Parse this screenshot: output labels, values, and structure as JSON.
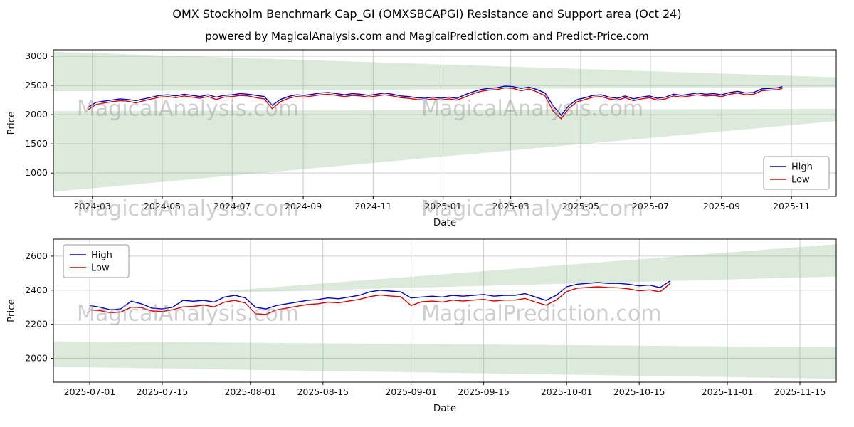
{
  "header": {
    "title": "OMX Stockholm Benchmark Cap_GI (OMXSBCAPGI) Resistance and Support area (Oct 24)",
    "subtitle": "powered by MagicalAnalysis.com and MagicalPrediction.com and Predict-Price.com"
  },
  "colors": {
    "high": "#0000cc",
    "low": "#dd0000",
    "band": "#8fbf8f",
    "grid": "#cccccc",
    "watermark": "#9e9e9e",
    "spine": "#000000",
    "text": "#111111"
  },
  "chart_data": [
    {
      "type": "line",
      "xlabel": "Date",
      "ylabel": "Price",
      "grid": true,
      "xlim": [
        "2024-01-27",
        "2025-12-10"
      ],
      "ylim": [
        600,
        3110
      ],
      "xticks": [
        "2024-03",
        "2024-05",
        "2024-07",
        "2024-09",
        "2024-11",
        "2025-01",
        "2025-03",
        "2025-05",
        "2025-07",
        "2025-09",
        "2025-11"
      ],
      "yticks": [
        1000,
        1500,
        2000,
        2500,
        3000
      ],
      "legend": {
        "position": "lower right",
        "entries": [
          "High",
          "Low"
        ]
      },
      "x": [
        "2024-02-26",
        "2024-03-04",
        "2024-03-11",
        "2024-03-18",
        "2024-03-25",
        "2024-04-01",
        "2024-04-08",
        "2024-04-15",
        "2024-04-22",
        "2024-04-29",
        "2024-05-06",
        "2024-05-13",
        "2024-05-20",
        "2024-05-27",
        "2024-06-03",
        "2024-06-10",
        "2024-06-17",
        "2024-06-24",
        "2024-07-01",
        "2024-07-08",
        "2024-07-15",
        "2024-07-22",
        "2024-07-29",
        "2024-08-05",
        "2024-08-12",
        "2024-08-19",
        "2024-08-26",
        "2024-09-02",
        "2024-09-09",
        "2024-09-16",
        "2024-09-23",
        "2024-09-30",
        "2024-10-07",
        "2024-10-14",
        "2024-10-21",
        "2024-10-28",
        "2024-11-04",
        "2024-11-11",
        "2024-11-18",
        "2024-11-25",
        "2024-12-02",
        "2024-12-09",
        "2024-12-16",
        "2024-12-23",
        "2024-12-30",
        "2025-01-06",
        "2025-01-13",
        "2025-01-20",
        "2025-01-27",
        "2025-02-03",
        "2025-02-10",
        "2025-02-17",
        "2025-02-24",
        "2025-03-03",
        "2025-03-10",
        "2025-03-17",
        "2025-03-24",
        "2025-03-31",
        "2025-04-07",
        "2025-04-14",
        "2025-04-21",
        "2025-04-28",
        "2025-05-05",
        "2025-05-12",
        "2025-05-19",
        "2025-05-26",
        "2025-06-02",
        "2025-06-09",
        "2025-06-16",
        "2025-06-23",
        "2025-06-30",
        "2025-07-07",
        "2025-07-14",
        "2025-07-21",
        "2025-07-28",
        "2025-08-04",
        "2025-08-11",
        "2025-08-18",
        "2025-08-25",
        "2025-09-01",
        "2025-09-08",
        "2025-09-15",
        "2025-09-22",
        "2025-09-29",
        "2025-10-06",
        "2025-10-13",
        "2025-10-20",
        "2025-10-24"
      ],
      "series": [
        {
          "name": "High",
          "color": "#0000cc",
          "values": [
            2120,
            2210,
            2230,
            2250,
            2270,
            2260,
            2240,
            2270,
            2300,
            2330,
            2340,
            2320,
            2350,
            2330,
            2310,
            2340,
            2300,
            2330,
            2340,
            2360,
            2350,
            2330,
            2310,
            2160,
            2260,
            2310,
            2340,
            2330,
            2350,
            2370,
            2380,
            2360,
            2340,
            2360,
            2350,
            2330,
            2350,
            2370,
            2350,
            2320,
            2310,
            2290,
            2280,
            2300,
            2280,
            2300,
            2280,
            2340,
            2390,
            2430,
            2450,
            2460,
            2490,
            2480,
            2450,
            2470,
            2430,
            2370,
            2150,
            1990,
            2160,
            2260,
            2290,
            2330,
            2340,
            2300,
            2280,
            2320,
            2270,
            2300,
            2320,
            2280,
            2300,
            2350,
            2330,
            2350,
            2370,
            2350,
            2360,
            2340,
            2380,
            2400,
            2370,
            2380,
            2440,
            2450,
            2460,
            2480
          ]
        },
        {
          "name": "Low",
          "color": "#dd0000",
          "values": [
            2080,
            2170,
            2200,
            2220,
            2240,
            2230,
            2200,
            2240,
            2270,
            2300,
            2310,
            2290,
            2320,
            2300,
            2280,
            2310,
            2260,
            2300,
            2310,
            2330,
            2320,
            2290,
            2270,
            2100,
            2220,
            2280,
            2310,
            2300,
            2320,
            2340,
            2350,
            2330,
            2310,
            2330,
            2320,
            2300,
            2320,
            2340,
            2320,
            2290,
            2280,
            2260,
            2250,
            2270,
            2250,
            2270,
            2250,
            2300,
            2360,
            2400,
            2420,
            2430,
            2460,
            2450,
            2410,
            2440,
            2390,
            2320,
            2060,
            1930,
            2110,
            2220,
            2260,
            2300,
            2310,
            2270,
            2250,
            2290,
            2240,
            2270,
            2290,
            2250,
            2270,
            2320,
            2300,
            2320,
            2340,
            2320,
            2330,
            2310,
            2350,
            2370,
            2340,
            2350,
            2410,
            2420,
            2430,
            2450
          ]
        }
      ],
      "bands": [
        {
          "name": "resistance-area",
          "points": [
            [
              "2024-01-27",
              3075
            ],
            [
              "2025-12-10",
              2640
            ],
            [
              "2025-12-10",
              2470
            ],
            [
              "2024-01-27",
              2400
            ]
          ]
        },
        {
          "name": "support-area",
          "points": [
            [
              "2024-01-27",
              2060
            ],
            [
              "2025-12-10",
              2100
            ],
            [
              "2025-12-10",
              1890
            ],
            [
              "2024-01-27",
              680
            ]
          ]
        }
      ],
      "watermarks": [
        {
          "fx": 0.03,
          "fy": 0.45,
          "text": "MagicalAnalysis.com"
        },
        {
          "fx": 0.47,
          "fy": 0.45,
          "text": "MagicalAnalysis.com"
        },
        {
          "fx": 0.03,
          "fy": 1.13,
          "text": "MagicalAnalysis.com"
        },
        {
          "fx": 0.47,
          "fy": 1.13,
          "text": "MagicalAnalysis.com"
        }
      ]
    },
    {
      "type": "line",
      "xlabel": "Date",
      "ylabel": "Price",
      "grid": true,
      "xlim": [
        "2025-06-24",
        "2025-11-22"
      ],
      "ylim": [
        1860,
        2700
      ],
      "xticks": [
        "2025-07-01",
        "2025-07-15",
        "2025-08-01",
        "2025-08-15",
        "2025-09-01",
        "2025-09-15",
        "2025-10-01",
        "2025-10-15",
        "2025-11-01",
        "2025-11-15"
      ],
      "yticks": [
        2000,
        2200,
        2400,
        2600
      ],
      "legend": {
        "position": "upper left",
        "entries": [
          "High",
          "Low"
        ]
      },
      "x": [
        "2025-07-01",
        "2025-07-03",
        "2025-07-05",
        "2025-07-07",
        "2025-07-09",
        "2025-07-11",
        "2025-07-13",
        "2025-07-15",
        "2025-07-17",
        "2025-07-19",
        "2025-07-21",
        "2025-07-23",
        "2025-07-25",
        "2025-07-27",
        "2025-07-29",
        "2025-07-31",
        "2025-08-02",
        "2025-08-04",
        "2025-08-06",
        "2025-08-08",
        "2025-08-10",
        "2025-08-12",
        "2025-08-14",
        "2025-08-16",
        "2025-08-18",
        "2025-08-20",
        "2025-08-22",
        "2025-08-24",
        "2025-08-26",
        "2025-08-28",
        "2025-08-30",
        "2025-09-01",
        "2025-09-03",
        "2025-09-05",
        "2025-09-07",
        "2025-09-09",
        "2025-09-11",
        "2025-09-13",
        "2025-09-15",
        "2025-09-17",
        "2025-09-19",
        "2025-09-21",
        "2025-09-23",
        "2025-09-25",
        "2025-09-27",
        "2025-09-29",
        "2025-10-01",
        "2025-10-03",
        "2025-10-05",
        "2025-10-07",
        "2025-10-09",
        "2025-10-11",
        "2025-10-13",
        "2025-10-15",
        "2025-10-17",
        "2025-10-19",
        "2025-10-21"
      ],
      "series": [
        {
          "name": "High",
          "color": "#0000cc",
          "values": [
            2310,
            2300,
            2285,
            2290,
            2335,
            2320,
            2295,
            2290,
            2300,
            2340,
            2335,
            2340,
            2330,
            2360,
            2370,
            2355,
            2300,
            2290,
            2310,
            2320,
            2330,
            2340,
            2345,
            2355,
            2350,
            2360,
            2370,
            2390,
            2400,
            2395,
            2390,
            2355,
            2360,
            2365,
            2360,
            2370,
            2365,
            2370,
            2375,
            2365,
            2370,
            2370,
            2380,
            2360,
            2340,
            2370,
            2420,
            2435,
            2440,
            2445,
            2440,
            2440,
            2435,
            2425,
            2430,
            2415,
            2455
          ]
        },
        {
          "name": "Low",
          "color": "#dd0000",
          "values": [
            2285,
            2280,
            2268,
            2272,
            2300,
            2298,
            2278,
            2275,
            2285,
            2302,
            2305,
            2312,
            2302,
            2330,
            2340,
            2325,
            2262,
            2258,
            2284,
            2295,
            2306,
            2316,
            2320,
            2330,
            2326,
            2336,
            2346,
            2362,
            2372,
            2366,
            2362,
            2310,
            2332,
            2336,
            2330,
            2342,
            2336,
            2342,
            2346,
            2336,
            2342,
            2342,
            2352,
            2330,
            2312,
            2342,
            2392,
            2412,
            2416,
            2420,
            2416,
            2414,
            2408,
            2396,
            2402,
            2390,
            2440
          ]
        }
      ],
      "bands": [
        {
          "name": "support-area",
          "points": [
            [
              "2025-06-24",
              2100
            ],
            [
              "2025-11-22",
              2065
            ],
            [
              "2025-11-22",
              1880
            ],
            [
              "2025-06-24",
              1950
            ]
          ]
        },
        {
          "name": "resistance-area",
          "points": [
            [
              "2025-07-28",
              2398
            ],
            [
              "2025-11-22",
              2670
            ],
            [
              "2025-11-22",
              2480
            ],
            [
              "2025-07-28",
              2386
            ]
          ]
        }
      ],
      "watermarks": [
        {
          "fx": 0.03,
          "fy": 0.57,
          "text": "MagicalAnalysis.com"
        },
        {
          "fx": 0.47,
          "fy": 0.57,
          "text": "MagicalPrediction.com"
        }
      ]
    }
  ]
}
